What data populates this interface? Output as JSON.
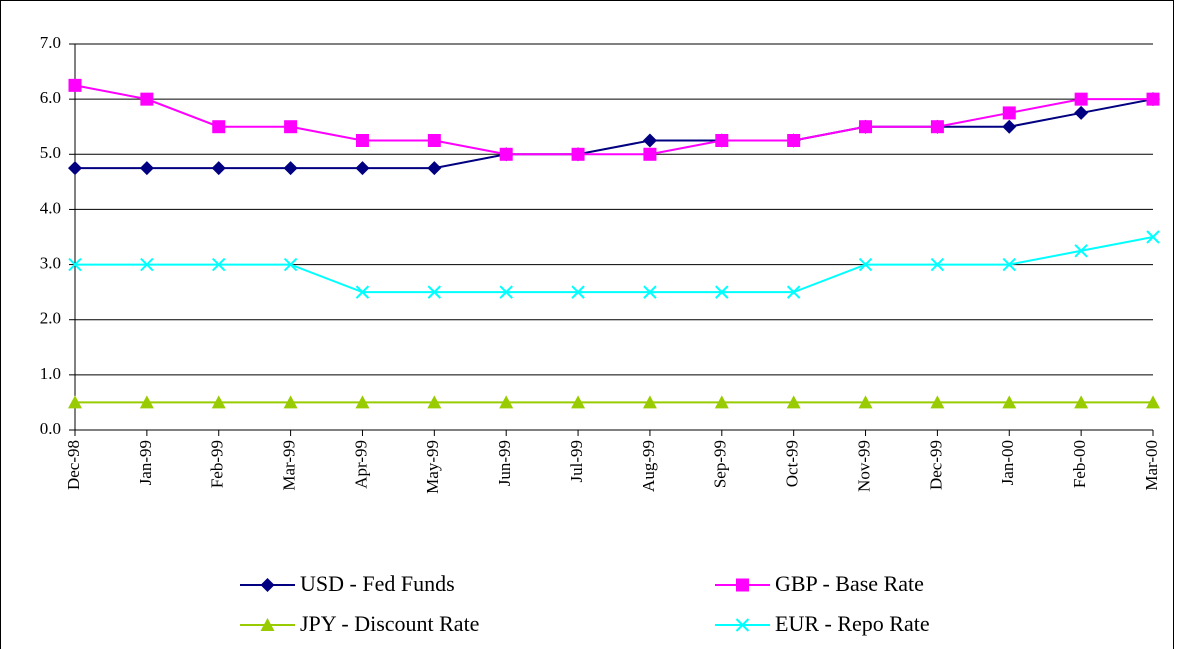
{
  "chart_data": {
    "type": "line",
    "categories": [
      "Dec-98",
      "Jan-99",
      "Feb-99",
      "Mar-99",
      "Apr-99",
      "May-99",
      "Jun-99",
      "Jul-99",
      "Aug-99",
      "Sep-99",
      "Oct-99",
      "Nov-99",
      "Dec-99",
      "Jan-00",
      "Feb-00",
      "Mar-00"
    ],
    "series": [
      {
        "name": "USD - Fed Funds",
        "color": "#000080",
        "marker": "diamond",
        "values": [
          4.75,
          4.75,
          4.75,
          4.75,
          4.75,
          4.75,
          5.0,
          5.0,
          5.25,
          5.25,
          5.25,
          5.5,
          5.5,
          5.5,
          5.75,
          6.0
        ]
      },
      {
        "name": "GBP - Base Rate",
        "color": "#ff00ff",
        "marker": "square",
        "values": [
          6.25,
          6.0,
          5.5,
          5.5,
          5.25,
          5.25,
          5.0,
          5.0,
          5.0,
          5.25,
          5.25,
          5.5,
          5.5,
          5.75,
          6.0,
          6.0
        ]
      },
      {
        "name": "JPY - Discount Rate",
        "color": "#99cc00",
        "marker": "triangle",
        "values": [
          0.5,
          0.5,
          0.5,
          0.5,
          0.5,
          0.5,
          0.5,
          0.5,
          0.5,
          0.5,
          0.5,
          0.5,
          0.5,
          0.5,
          0.5,
          0.5
        ]
      },
      {
        "name": "EUR - Repo Rate",
        "color": "#00ffff",
        "marker": "x",
        "values": [
          3,
          3,
          3,
          3,
          2.5,
          2.5,
          2.5,
          2.5,
          2.5,
          2.5,
          2.5,
          3,
          3,
          3,
          3.25,
          3.5
        ]
      }
    ],
    "ylim": [
      0,
      7
    ],
    "yticks": [
      {
        "value": 0,
        "label": "0.0"
      },
      {
        "value": 1,
        "label": "1.0"
      },
      {
        "value": 2,
        "label": "2.0"
      },
      {
        "value": 3,
        "label": "3.0"
      },
      {
        "value": 4,
        "label": "4.0"
      },
      {
        "value": 5,
        "label": "5.0"
      },
      {
        "value": 6,
        "label": "6.0"
      },
      {
        "value": 7,
        "label": "7.0"
      }
    ],
    "grid": true,
    "legend": "bottom"
  }
}
